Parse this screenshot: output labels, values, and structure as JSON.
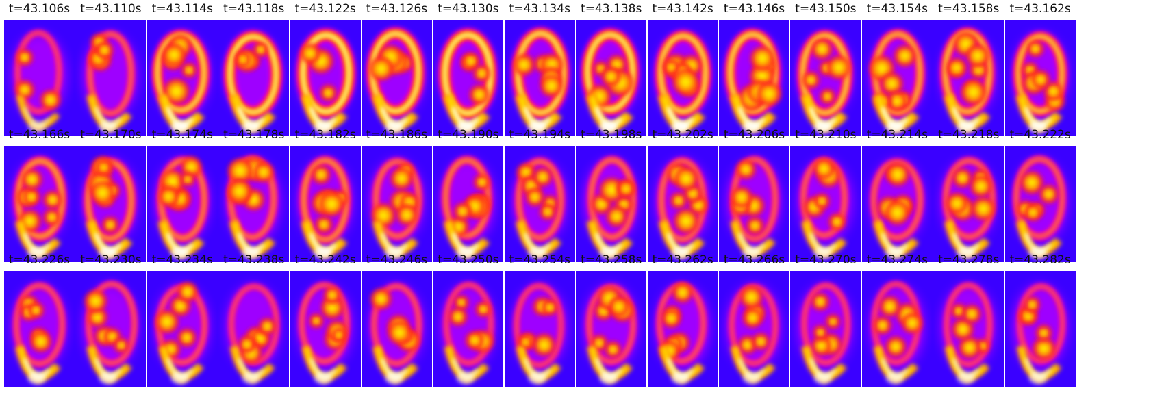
{
  "colors": {
    "background": "#3a00ff",
    "colormap": [
      "#3a00ff",
      "#b000ff",
      "#ff00c0",
      "#ff2020",
      "#ff9a00",
      "#ffe300",
      "#ffffff"
    ]
  },
  "frames": [
    {
      "time_label": "t=43.106s",
      "ring": 0.35,
      "intensity": 0.45,
      "blobs": 3
    },
    {
      "time_label": "t=43.110s",
      "ring": 0.45,
      "intensity": 0.65,
      "blobs": 4
    },
    {
      "time_label": "t=43.114s",
      "ring": 0.85,
      "intensity": 0.85,
      "blobs": 5
    },
    {
      "time_label": "t=43.118s",
      "ring": 0.95,
      "intensity": 0.8,
      "blobs": 4
    },
    {
      "time_label": "t=43.122s",
      "ring": 1.0,
      "intensity": 0.8,
      "blobs": 3
    },
    {
      "time_label": "t=43.126s",
      "ring": 0.95,
      "intensity": 0.8,
      "blobs": 4
    },
    {
      "time_label": "t=43.130s",
      "ring": 1.0,
      "intensity": 0.85,
      "blobs": 4
    },
    {
      "time_label": "t=43.134s",
      "ring": 0.9,
      "intensity": 0.85,
      "blobs": 5
    },
    {
      "time_label": "t=43.138s",
      "ring": 0.95,
      "intensity": 0.9,
      "blobs": 5
    },
    {
      "time_label": "t=43.142s",
      "ring": 0.85,
      "intensity": 0.9,
      "blobs": 6
    },
    {
      "time_label": "t=43.146s",
      "ring": 0.85,
      "intensity": 0.85,
      "blobs": 6
    },
    {
      "time_label": "t=43.150s",
      "ring": 0.8,
      "intensity": 0.85,
      "blobs": 5
    },
    {
      "time_label": "t=43.154s",
      "ring": 0.7,
      "intensity": 0.85,
      "blobs": 6
    },
    {
      "time_label": "t=43.158s",
      "ring": 0.75,
      "intensity": 0.8,
      "blobs": 7
    },
    {
      "time_label": "t=43.162s",
      "ring": 0.75,
      "intensity": 0.8,
      "blobs": 6
    },
    {
      "time_label": "t=43.166s",
      "ring": 0.65,
      "intensity": 0.7,
      "blobs": 6
    },
    {
      "time_label": "t=43.170s",
      "ring": 0.6,
      "intensity": 0.8,
      "blobs": 7
    },
    {
      "time_label": "t=43.174s",
      "ring": 0.55,
      "intensity": 0.8,
      "blobs": 7
    },
    {
      "time_label": "t=43.178s",
      "ring": 0.5,
      "intensity": 0.75,
      "blobs": 6
    },
    {
      "time_label": "t=43.182s",
      "ring": 0.6,
      "intensity": 0.8,
      "blobs": 7
    },
    {
      "time_label": "t=43.186s",
      "ring": 0.5,
      "intensity": 0.7,
      "blobs": 6
    },
    {
      "time_label": "t=43.190s",
      "ring": 0.55,
      "intensity": 0.75,
      "blobs": 7
    },
    {
      "time_label": "t=43.194s",
      "ring": 0.5,
      "intensity": 0.7,
      "blobs": 6
    },
    {
      "time_label": "t=43.198s",
      "ring": 0.5,
      "intensity": 0.75,
      "blobs": 6
    },
    {
      "time_label": "t=43.202s",
      "ring": 0.5,
      "intensity": 0.75,
      "blobs": 6
    },
    {
      "time_label": "t=43.206s",
      "ring": 0.45,
      "intensity": 0.65,
      "blobs": 5
    },
    {
      "time_label": "t=43.210s",
      "ring": 0.45,
      "intensity": 0.65,
      "blobs": 5
    },
    {
      "time_label": "t=43.214s",
      "ring": 0.45,
      "intensity": 0.7,
      "blobs": 6
    },
    {
      "time_label": "t=43.218s",
      "ring": 0.45,
      "intensity": 0.7,
      "blobs": 6
    },
    {
      "time_label": "t=43.222s",
      "ring": 0.45,
      "intensity": 0.7,
      "blobs": 5
    },
    {
      "time_label": "t=43.226s",
      "ring": 0.4,
      "intensity": 0.7,
      "blobs": 5
    },
    {
      "time_label": "t=43.230s",
      "ring": 0.4,
      "intensity": 0.65,
      "blobs": 5
    },
    {
      "time_label": "t=43.234s",
      "ring": 0.4,
      "intensity": 0.65,
      "blobs": 5
    },
    {
      "time_label": "t=43.238s",
      "ring": 0.35,
      "intensity": 0.6,
      "blobs": 5
    },
    {
      "time_label": "t=43.242s",
      "ring": 0.4,
      "intensity": 0.65,
      "blobs": 6
    },
    {
      "time_label": "t=43.246s",
      "ring": 0.4,
      "intensity": 0.7,
      "blobs": 6
    },
    {
      "time_label": "t=43.250s",
      "ring": 0.35,
      "intensity": 0.6,
      "blobs": 5
    },
    {
      "time_label": "t=43.254s",
      "ring": 0.35,
      "intensity": 0.65,
      "blobs": 5
    },
    {
      "time_label": "t=43.258s",
      "ring": 0.4,
      "intensity": 0.7,
      "blobs": 6
    },
    {
      "time_label": "t=43.262s",
      "ring": 0.4,
      "intensity": 0.7,
      "blobs": 6
    },
    {
      "time_label": "t=43.266s",
      "ring": 0.35,
      "intensity": 0.6,
      "blobs": 5
    },
    {
      "time_label": "t=43.270s",
      "ring": 0.35,
      "intensity": 0.65,
      "blobs": 5
    },
    {
      "time_label": "t=43.274s",
      "ring": 0.35,
      "intensity": 0.6,
      "blobs": 5
    },
    {
      "time_label": "t=43.278s",
      "ring": 0.35,
      "intensity": 0.6,
      "blobs": 5
    },
    {
      "time_label": "t=43.282s",
      "ring": 0.35,
      "intensity": 0.6,
      "blobs": 5
    }
  ]
}
